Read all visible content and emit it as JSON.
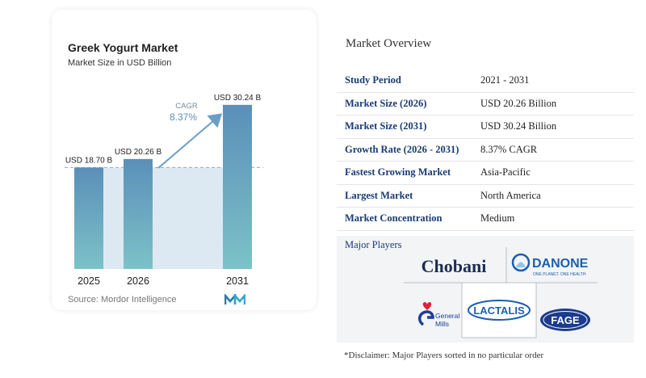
{
  "chart": {
    "title": "Greek Yogurt Market",
    "subtitle": "Market Size in USD Billion",
    "source": "Source: Mordor Intelligence"
  },
  "chart_data": {
    "type": "bar",
    "categories": [
      "2025",
      "2026",
      "2031"
    ],
    "values": [
      18.7,
      20.26,
      30.24
    ],
    "data_labels": [
      "USD 18.70 B",
      "USD 20.26 B",
      "USD 30.24 B"
    ],
    "cagr_label": "CAGR",
    "cagr_value": "8.37%",
    "title": "Greek Yogurt Market",
    "subtitle": "Market Size in USD Billion",
    "ylim": [
      0,
      32
    ],
    "grid": false,
    "colors": {
      "bar_top": "#5b8fb9",
      "bar_bottom": "#7cc2c8",
      "band": "#dce9f2",
      "arrow": "#6a9ec9",
      "dashed": "#9aa8b4"
    }
  },
  "overview": {
    "title": "Market Overview",
    "rows": [
      {
        "label": "Study Period",
        "value": "2021 - 2031"
      },
      {
        "label": "Market Size (2026)",
        "value": "USD 20.26 Billion"
      },
      {
        "label": "Market Size (2031)",
        "value": "USD 30.24 Billion"
      },
      {
        "label": "Growth Rate (2026 - 2031)",
        "value": "8.37% CAGR"
      },
      {
        "label": "Fastest Growing Market",
        "value": "Asia-Pacific"
      },
      {
        "label": "Largest Market",
        "value": "North America"
      },
      {
        "label": "Market Concentration",
        "value": "Medium"
      }
    ]
  },
  "players": {
    "title": "Major Players",
    "logos": [
      {
        "name": "Chobani",
        "text": "Chobani"
      },
      {
        "name": "Danone",
        "text": "DANONE",
        "tagline": "ONE PLANET. ONE HEALTH"
      },
      {
        "name": "General Mills",
        "text1": "General",
        "text2": "Mills"
      },
      {
        "name": "Lactalis",
        "text": "LACTALIS"
      },
      {
        "name": "Fage",
        "text": "FAGE"
      }
    ],
    "disclaimer": "*Disclaimer: Major Players sorted in no particular order"
  }
}
